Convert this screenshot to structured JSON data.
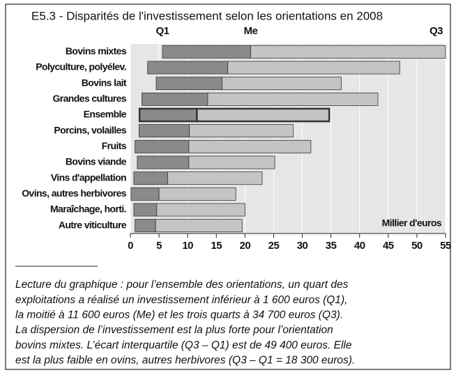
{
  "chart_data": {
    "type": "floating_bar",
    "title": "E5.3 - Disparités de l'investissement selon les orientations en 2008",
    "categories": [
      "Bovins mixtes",
      "Polyculture, polyélev.",
      "Bovins lait",
      "Grandes cultures",
      "Ensemble",
      "Porcins, volailles",
      "Fruits",
      "Bovins viande",
      "Vins d'appellation",
      "Ovins, autres herbivores",
      "Maraîchage, horti.",
      "Autre viticulture"
    ],
    "series": [
      {
        "name": "Q1",
        "color": "#8a8a8a",
        "values": [
          5.6,
          3.0,
          4.5,
          2.0,
          1.6,
          1.5,
          0.8,
          1.2,
          0.6,
          0.1,
          0.6,
          0.8
        ]
      },
      {
        "name": "Me",
        "color": "#c4c4c4",
        "values": [
          21.0,
          17.0,
          16.0,
          13.5,
          11.6,
          10.3,
          10.2,
          10.2,
          6.5,
          5.0,
          4.6,
          4.4
        ]
      },
      {
        "name": "Q3",
        "values": [
          55.0,
          47.0,
          36.8,
          43.2,
          34.7,
          28.4,
          31.5,
          25.2,
          23.0,
          18.4,
          20.0,
          19.5
        ]
      }
    ],
    "highlight": "Ensemble",
    "xlim": [
      0,
      55
    ],
    "xticks": [
      0,
      5,
      10,
      15,
      20,
      25,
      30,
      35,
      40,
      45,
      50,
      55
    ],
    "x_label": "Millier d'euros",
    "note": [
      "Lecture du graphique : pour l’ensemble des orientations, un quart des",
      "exploitations a réalisé un investissement inférieur à 1 600 euros (Q1),",
      "la moitié à 11 600 euros (Me) et les trois quarts à 34 700 euros (Q3).",
      "La dispersion de l’investissement est la plus forte pour l’orientation",
      "bovins mixtes. L’écart interquartile (Q3 – Q1) est de 49 400 euros. Elle",
      "est la plus faible en ovins, autres herbivores (Q3 – Q1 = 18 300 euros)."
    ]
  }
}
